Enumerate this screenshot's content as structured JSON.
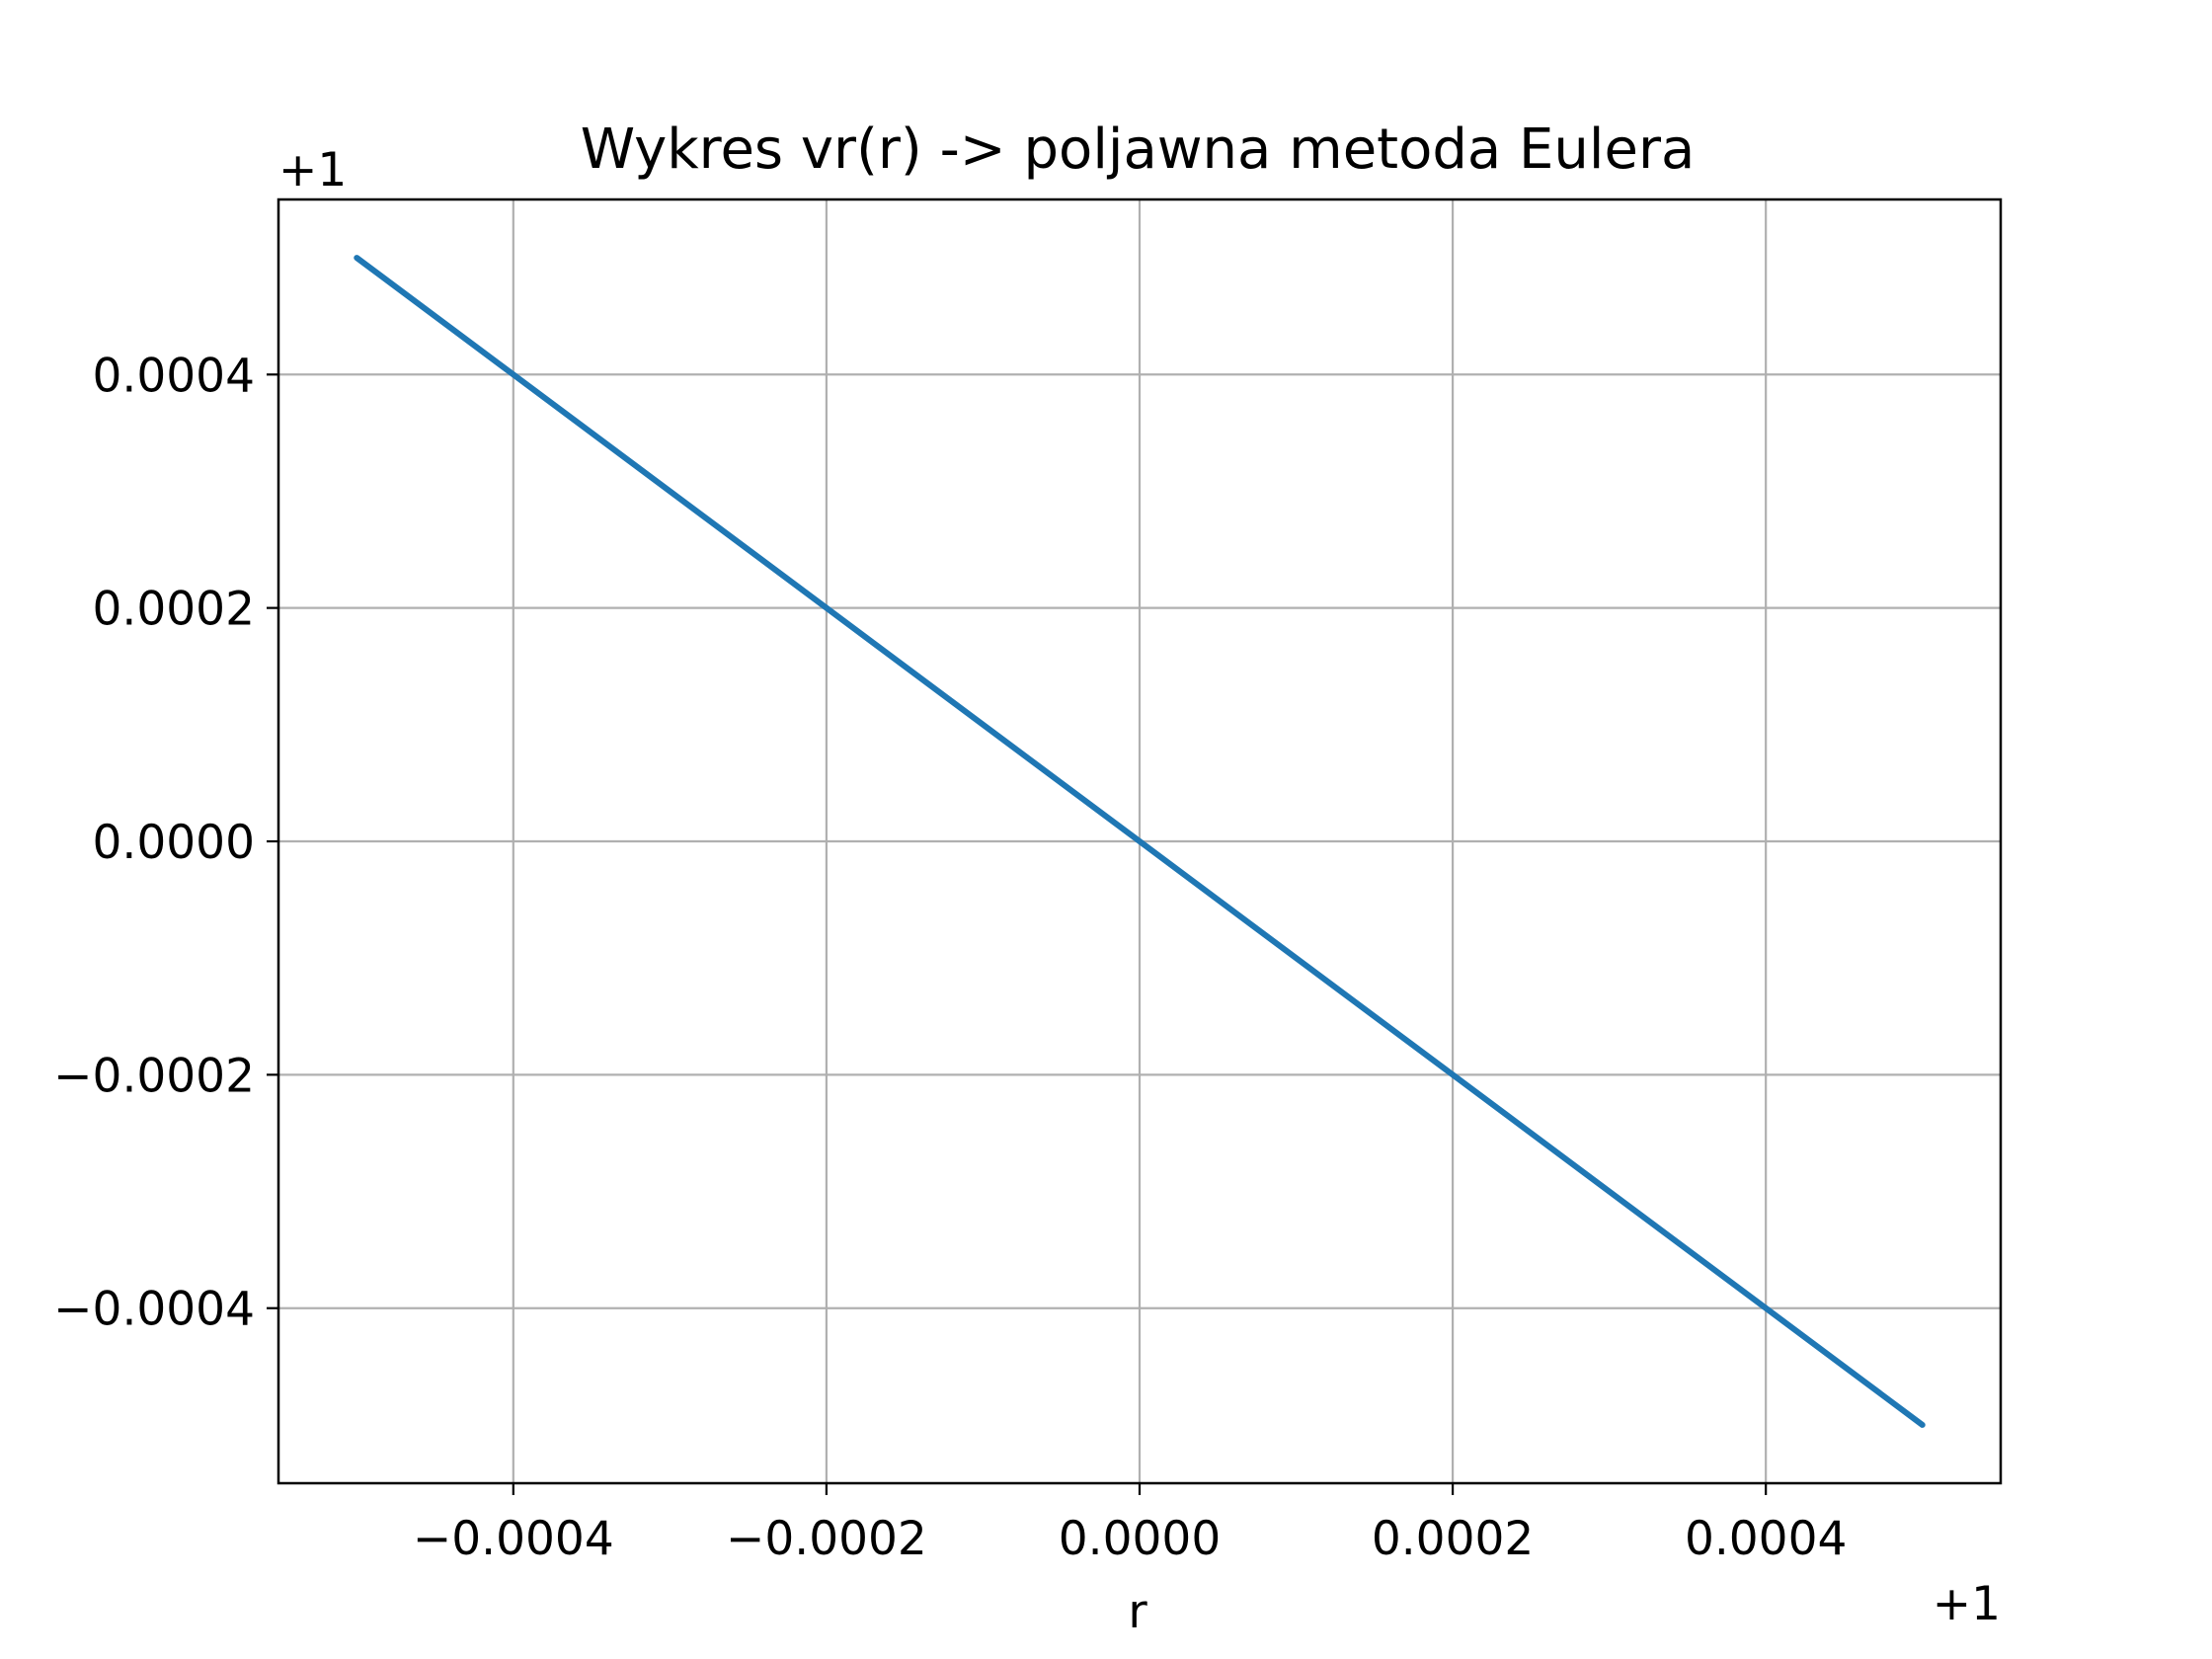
{
  "chart_data": {
    "type": "line",
    "title": "Wykres vr(r) -> poljawna metoda Eulera",
    "xlabel": "r",
    "ylabel": "",
    "x_offset_label": "+1",
    "y_offset_label": "+1",
    "xlim": [
      -0.00055,
      0.00055
    ],
    "ylim": [
      -0.00055,
      0.00055
    ],
    "grid": true,
    "x_ticks": [
      -0.0004,
      -0.0002,
      0.0,
      0.0002,
      0.0004
    ],
    "x_tick_labels": [
      "−0.0004",
      "−0.0002",
      "0.0000",
      "0.0002",
      "0.0004"
    ],
    "y_ticks": [
      -0.0004,
      -0.0002,
      0.0,
      0.0002,
      0.0004
    ],
    "y_tick_labels": [
      "−0.0004",
      "−0.0002",
      "0.0000",
      "0.0002",
      "0.0004"
    ],
    "series": [
      {
        "color": "#1f77b4",
        "x": [
          -0.0005,
          0.0005
        ],
        "y": [
          0.0005,
          -0.0005
        ]
      }
    ]
  }
}
